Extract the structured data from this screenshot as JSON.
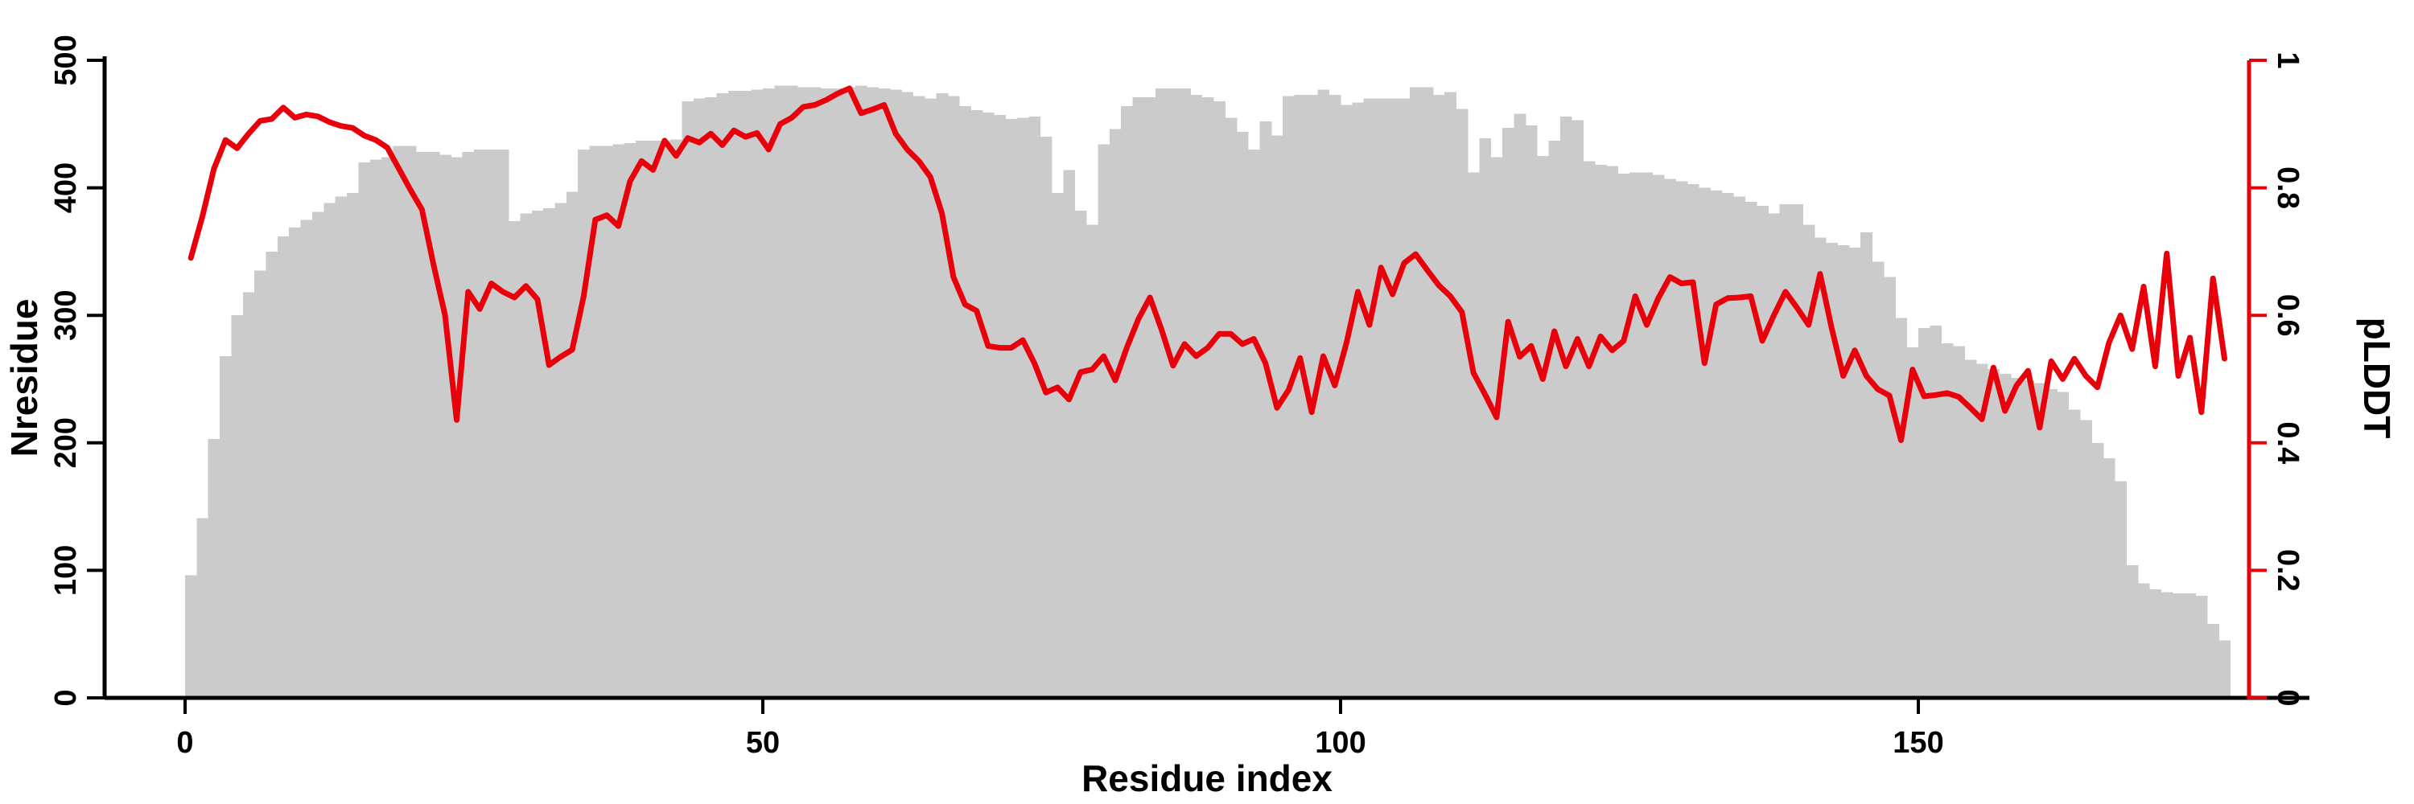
{
  "figure": {
    "background": "#ffffff",
    "bar_color": "#cbcbcb",
    "line_color": "#e8000b",
    "axis_color": "#000000"
  },
  "chart_data": {
    "type": "bar",
    "subtype": "dual-axis bar+line (per-residue profile)",
    "title": "",
    "xlabel": "Residue index",
    "ylabel_left": "Nresidue",
    "ylabel_right": "pLDDT",
    "x_start": 0,
    "x_step": 1,
    "n_points": 177,
    "x_ticks": [
      0,
      50,
      100,
      150
    ],
    "x_tick_labels": [
      "0",
      "50",
      "100",
      "150"
    ],
    "y_left_ticks": [
      0,
      100,
      200,
      300,
      400,
      500
    ],
    "y_left_tick_labels": [
      "0",
      "100",
      "200",
      "300",
      "400",
      "500"
    ],
    "y_left_range": [
      0,
      500
    ],
    "y_right_ticks": [
      0,
      0.2,
      0.4,
      0.6,
      0.8,
      1
    ],
    "y_right_tick_labels": [
      "0",
      "0.2",
      "0.4",
      "0.6",
      "0.8",
      "1"
    ],
    "y_right_range": [
      0,
      1
    ],
    "grid": false,
    "legend": "none",
    "series": [
      {
        "name": "Nresidue",
        "type": "bar",
        "axis": "left",
        "color": "#cbcbcb",
        "values": [
          96,
          141,
          203,
          268,
          300,
          318,
          335,
          350,
          362,
          369,
          375,
          381,
          388,
          393,
          396,
          420,
          422,
          424,
          433,
          433,
          428,
          428,
          426,
          424,
          428,
          430,
          430,
          430,
          374,
          380,
          382,
          384,
          388,
          397,
          430,
          433,
          433,
          434,
          435,
          437,
          437,
          437,
          438,
          468,
          470,
          471,
          474,
          476,
          476,
          477,
          478,
          480,
          480,
          479,
          479,
          478,
          478,
          479,
          480,
          479,
          478,
          477,
          475,
          472,
          470,
          474,
          472,
          464,
          461,
          459,
          457,
          454,
          455,
          456,
          440,
          396,
          414,
          382,
          371,
          434,
          446,
          464,
          471,
          471,
          478,
          478,
          478,
          473,
          471,
          468,
          455,
          444,
          430,
          452,
          441,
          472,
          473,
          473,
          477,
          473,
          465,
          467,
          470,
          470,
          470,
          470,
          479,
          479,
          473,
          475,
          462,
          412,
          439,
          424,
          447,
          458,
          449,
          425,
          437,
          456,
          453,
          421,
          418,
          417,
          411,
          412,
          412,
          410,
          407,
          405,
          403,
          400,
          398,
          396,
          393,
          389,
          386,
          380,
          387,
          387,
          371,
          361,
          357,
          355,
          353,
          365,
          342,
          330,
          298,
          275,
          290,
          292,
          278,
          276,
          265,
          262,
          258,
          254,
          251,
          249,
          247,
          242,
          240,
          226,
          218,
          200,
          188,
          170,
          104,
          90,
          85,
          83,
          82,
          82,
          80,
          58,
          45
        ]
      },
      {
        "name": "pLDDT",
        "type": "line",
        "axis": "right",
        "color": "#e8000b",
        "values": [
          0.69,
          0.755,
          0.83,
          0.875,
          0.862,
          0.885,
          0.905,
          0.908,
          0.926,
          0.91,
          0.915,
          0.912,
          0.903,
          0.897,
          0.894,
          0.882,
          0.875,
          0.863,
          0.83,
          0.797,
          0.766,
          0.68,
          0.6,
          0.436,
          0.637,
          0.61,
          0.65,
          0.637,
          0.628,
          0.646,
          0.625,
          0.522,
          0.535,
          0.546,
          0.63,
          0.75,
          0.757,
          0.74,
          0.81,
          0.842,
          0.828,
          0.874,
          0.85,
          0.878,
          0.871,
          0.885,
          0.867,
          0.89,
          0.88,
          0.886,
          0.86,
          0.9,
          0.91,
          0.927,
          0.93,
          0.938,
          0.948,
          0.956,
          0.917,
          0.923,
          0.93,
          0.885,
          0.86,
          0.842,
          0.817,
          0.76,
          0.66,
          0.617,
          0.607,
          0.552,
          0.549,
          0.549,
          0.561,
          0.525,
          0.479,
          0.487,
          0.468,
          0.511,
          0.515,
          0.536,
          0.498,
          0.549,
          0.594,
          0.628,
          0.578,
          0.521,
          0.555,
          0.536,
          0.549,
          0.571,
          0.571,
          0.555,
          0.563,
          0.525,
          0.455,
          0.483,
          0.533,
          0.448,
          0.536,
          0.49,
          0.556,
          0.637,
          0.585,
          0.675,
          0.633,
          0.682,
          0.696,
          0.671,
          0.647,
          0.63,
          0.605,
          0.51,
          0.476,
          0.44,
          0.59,
          0.535,
          0.552,
          0.5,
          0.575,
          0.52,
          0.563,
          0.52,
          0.567,
          0.545,
          0.56,
          0.63,
          0.585,
          0.627,
          0.66,
          0.65,
          0.652,
          0.525,
          0.617,
          0.627,
          0.628,
          0.63,
          0.56,
          0.6,
          0.637,
          0.612,
          0.585,
          0.665,
          0.58,
          0.505,
          0.545,
          0.505,
          0.484,
          0.474,
          0.404,
          0.515,
          0.473,
          0.475,
          0.478,
          0.472,
          0.455,
          0.437,
          0.518,
          0.45,
          0.49,
          0.513,
          0.424,
          0.528,
          0.5,
          0.532,
          0.505,
          0.487,
          0.557,
          0.6,
          0.547,
          0.645,
          0.52,
          0.697,
          0.505,
          0.565,
          0.448,
          0.658,
          0.532
        ]
      }
    ]
  }
}
